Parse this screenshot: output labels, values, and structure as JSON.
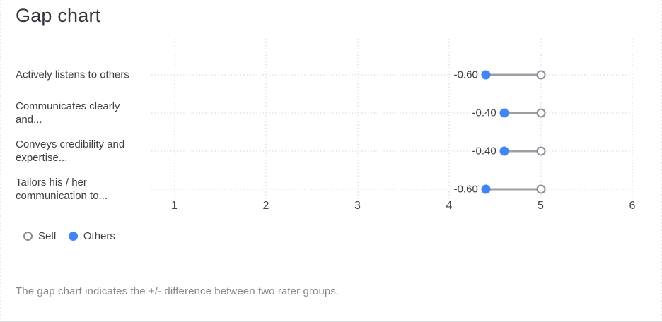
{
  "title": "Gap chart",
  "footer": "The gap chart indicates the +/- difference between two rater groups.",
  "legend": [
    {
      "name": "Self",
      "marker": "open-circle"
    },
    {
      "name": "Others",
      "marker": "filled-dot"
    }
  ],
  "colors": {
    "others_blue": "#4184f3",
    "self_ring_gray": "#878d95",
    "connector_gray": "#9aa0a6",
    "grid_dotted": "#e8e9ec",
    "text_dark": "#3c4043",
    "footer_gray": "#85898e"
  },
  "chart_data": {
    "type": "scatter",
    "variant": "dumbbell-gap",
    "title": "Gap chart",
    "categories": [
      "Actively listens to others",
      "Communicates clearly and...",
      "Conveys credibility and expertise...",
      "Tailors his / her communication to..."
    ],
    "series": [
      {
        "name": "Self",
        "values": [
          5.0,
          5.0,
          5.0,
          5.0
        ]
      },
      {
        "name": "Others",
        "values": [
          4.4,
          4.6,
          4.6,
          4.4
        ]
      }
    ],
    "gap_labels": [
      "-0.60",
      "-0.40",
      "-0.40",
      "-0.60"
    ],
    "x_ticks": [
      1,
      2,
      3,
      4,
      5,
      6
    ],
    "xlim": [
      1,
      6
    ],
    "grid": "dotted-both-axes",
    "legend_position": "bottom-left"
  }
}
